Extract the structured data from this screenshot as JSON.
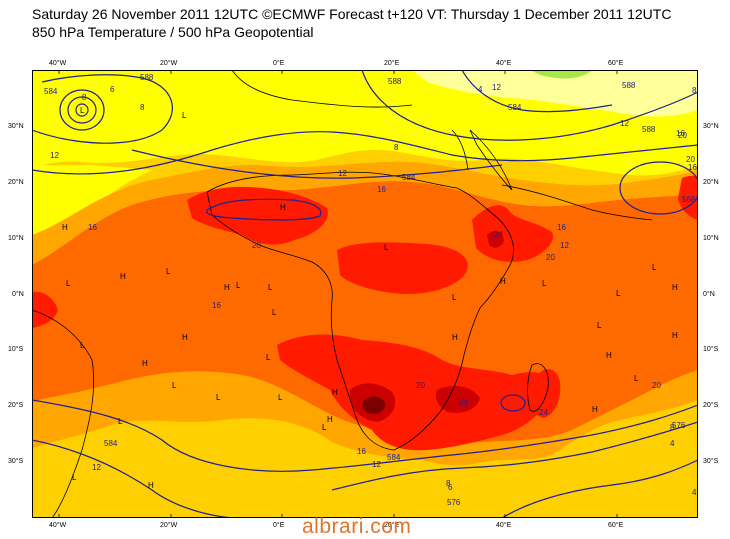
{
  "title_line1": "Saturday 26 November 2011 12UTC ©ECMWF Forecast t+120 VT: Thursday 1 December 2011 12UTC",
  "title_line2": "850 hPa Temperature / 500 hPa Geopotential",
  "watermark": "albrari.com",
  "colors": {
    "pale_yellow": "#ffff99",
    "yellow": "#ffff00",
    "gold": "#ffd000",
    "orange": "#ffa600",
    "dark_orange": "#ff6a00",
    "red": "#ff1a00",
    "dark_red": "#cc0000",
    "maroon": "#7a0000",
    "green": "#a6e84a",
    "contour": "#202090",
    "coast": "#000000"
  },
  "axes": {
    "lon_labels": [
      "40°W",
      "20°W",
      "0°E",
      "20°E",
      "40°E",
      "60°E"
    ],
    "lat_labels": [
      "30°N",
      "20°N",
      "10°N",
      "0°N",
      "10°S",
      "20°S",
      "30°S"
    ]
  },
  "contour_labels": [
    "8",
    "6",
    "8",
    "12",
    "16",
    "16",
    "12",
    "20",
    "20",
    "24",
    "24",
    "24",
    "20",
    "16",
    "12",
    "12",
    "16",
    "12",
    "16",
    "20",
    "8",
    "8",
    "4",
    "6",
    "8",
    "4",
    "12",
    "16",
    "20",
    "20",
    "16",
    "12",
    "8",
    "4"
  ],
  "geopotential_labels": [
    "588",
    "588",
    "584",
    "584",
    "588",
    "584",
    "588",
    "584",
    "584",
    "576",
    "576",
    "568"
  ],
  "pressure_marks": [
    "L",
    "H",
    "H",
    "H",
    "L",
    "H",
    "L",
    "H",
    "L",
    "L",
    "L",
    "L",
    "H",
    "L",
    "H",
    "L",
    "L",
    "H",
    "L",
    "L",
    "H",
    "H",
    "H",
    "L",
    "H",
    "L",
    "L",
    "L",
    "L",
    "H",
    "L",
    "L",
    "H",
    "L",
    "L",
    "H",
    "L"
  ]
}
